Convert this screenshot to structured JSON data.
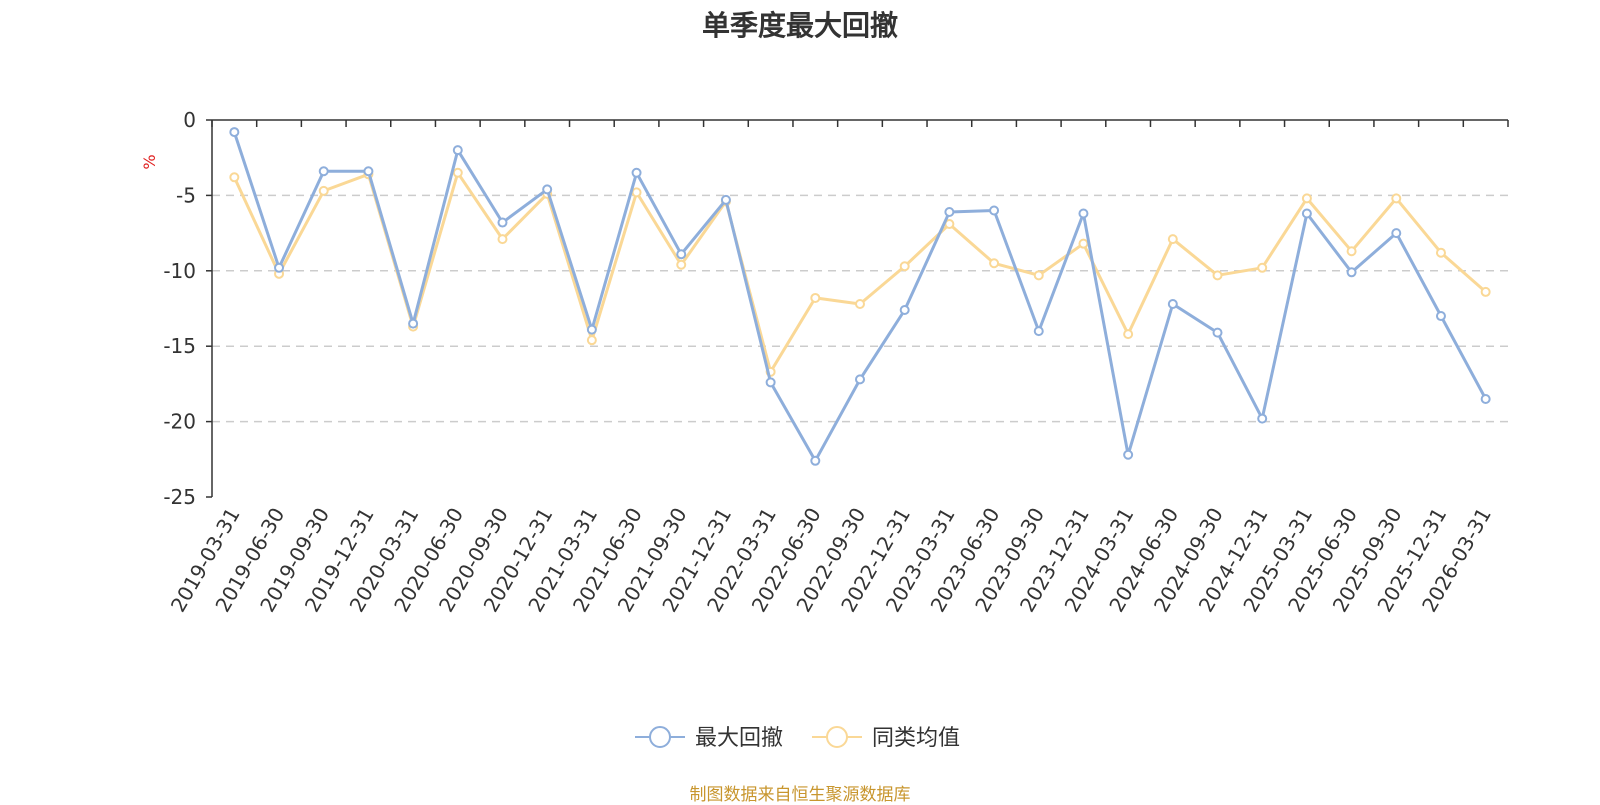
{
  "title": "单季度最大回撤",
  "footer": "制图数据来自恒生聚源数据库",
  "chart_data": {
    "type": "line",
    "ylabel": "%",
    "ylim": [
      -25,
      0
    ],
    "yticks": [
      0,
      -5,
      -10,
      -15,
      -20,
      -25
    ],
    "grid": "dashed horizontal",
    "legend_position": "bottom-center",
    "categories": [
      "2019-03-31",
      "2019-06-30",
      "2019-09-30",
      "2019-12-31",
      "2020-03-31",
      "2020-06-30",
      "2020-09-30",
      "2020-12-31",
      "2021-03-31",
      "2021-06-30",
      "2021-09-30",
      "2021-12-31",
      "2022-03-31",
      "2022-06-30",
      "2022-09-30",
      "2022-12-31",
      "2023-03-31",
      "2023-06-30",
      "2023-09-30",
      "2023-12-31",
      "2024-03-31",
      "2024-06-30",
      "2024-09-30",
      "2024-12-31",
      "2025-03-31",
      "2025-06-30",
      "2025-09-30",
      "2025-12-31",
      "2026-03-31"
    ],
    "series": [
      {
        "name": "最大回撤",
        "color": "#8eaedb",
        "values": [
          -0.8,
          -9.8,
          -3.4,
          -3.4,
          -13.5,
          -2.0,
          -6.8,
          -4.6,
          -13.9,
          -3.5,
          -8.9,
          -5.3,
          -17.4,
          -22.6,
          -17.2,
          -12.6,
          -6.1,
          -6.0,
          -14.0,
          -6.2,
          -22.2,
          -12.2,
          -14.1,
          -19.8,
          -6.2,
          -10.1,
          -7.5,
          -13.0,
          -18.5
        ]
      },
      {
        "name": "同类均值",
        "color": "#fad896",
        "values": [
          -3.8,
          -10.2,
          -4.7,
          -3.6,
          -13.7,
          -3.5,
          -7.9,
          -4.9,
          -14.6,
          -4.8,
          -9.6,
          -5.4,
          -16.7,
          -11.8,
          -12.2,
          -9.7,
          -6.9,
          -9.5,
          -10.3,
          -8.2,
          -14.2,
          -7.9,
          -10.3,
          -9.8,
          -5.2,
          -8.7,
          -5.2,
          -8.8,
          -11.4
        ]
      }
    ]
  }
}
